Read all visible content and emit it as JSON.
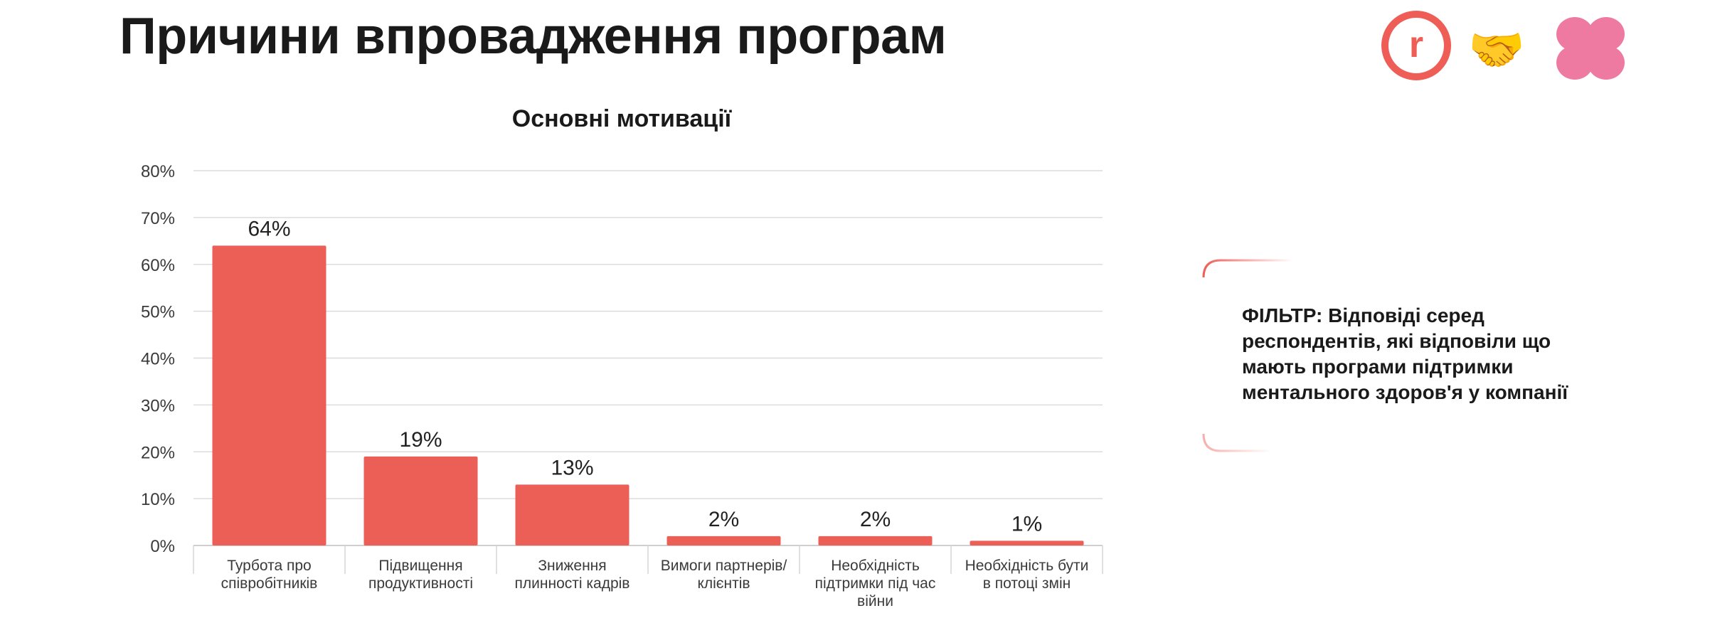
{
  "page": {
    "title": "Причини впровадження програм"
  },
  "filter": {
    "text": "ФІЛЬТР: Відповіді серед респондентів, які відповіли що мають програми підтримки ментального здоров'я у компанії"
  },
  "logos": [
    {
      "name": "r-circle-logo",
      "glyph": "r",
      "color": "#ee5e57"
    },
    {
      "name": "handshake-icon",
      "glyph": "🤝",
      "color": "#f2b52a"
    },
    {
      "name": "pink-flower-logo",
      "glyph": "",
      "color": "#ee7aa2"
    }
  ],
  "colors": {
    "bar": "#ec5f57",
    "grid": "#dcdcdc",
    "axis_text": "#3a3a3a",
    "filter_border": "#ee5e57"
  },
  "chart_data": {
    "type": "bar",
    "title": "Основні мотивації",
    "xlabel": "",
    "ylabel": "",
    "categories": [
      [
        "Турбота про",
        "співробітників"
      ],
      [
        "Підвищення",
        "продуктивності"
      ],
      [
        "Зниження",
        "плинності кадрів"
      ],
      [
        "Вимоги партнерів/",
        "клієнтів"
      ],
      [
        "Необхідність",
        "підтримки під час",
        "війни"
      ],
      [
        "Необхідність бути",
        "в потоці змін"
      ]
    ],
    "values": [
      64,
      19,
      13,
      2,
      2,
      1
    ],
    "value_labels": [
      "64%",
      "19%",
      "13%",
      "2%",
      "2%",
      "1%"
    ],
    "ylim": [
      0,
      80
    ],
    "yticks": [
      0,
      10,
      20,
      30,
      40,
      50,
      60,
      70,
      80
    ],
    "ytick_labels": [
      "0%",
      "10%",
      "20%",
      "30%",
      "40%",
      "50%",
      "60%",
      "70%",
      "80%"
    ],
    "grid": true,
    "legend": "none"
  }
}
